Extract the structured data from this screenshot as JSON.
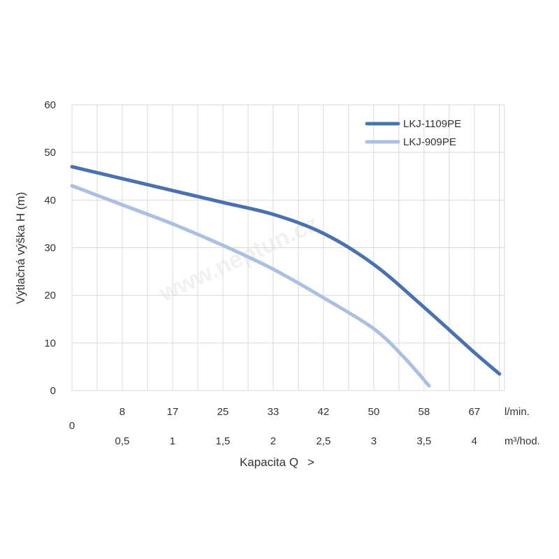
{
  "chart_data": {
    "type": "line",
    "xlabel": "Kapacita Q",
    "xlabel_arrow": ">",
    "ylabel": "Výtlačná výška H (m)",
    "ylim": [
      0,
      60
    ],
    "yticks": [
      0,
      10,
      20,
      30,
      40,
      50,
      60
    ],
    "xlim": [
      0,
      4.3
    ],
    "grid": true,
    "legend_position": "top-right",
    "x_axis_primary": {
      "unit": "l/min.",
      "ticks": [
        {
          "x": 0.5,
          "label": "8"
        },
        {
          "x": 1,
          "label": "17"
        },
        {
          "x": 1.5,
          "label": "25"
        },
        {
          "x": 2,
          "label": "33"
        },
        {
          "x": 2.5,
          "label": "42"
        },
        {
          "x": 3,
          "label": "50"
        },
        {
          "x": 3.5,
          "label": "58"
        },
        {
          "x": 4,
          "label": "67"
        }
      ]
    },
    "x_axis_secondary": {
      "unit": "m³/hod.",
      "ticks": [
        {
          "x": 0,
          "label": "0"
        },
        {
          "x": 0.5,
          "label": "0,5"
        },
        {
          "x": 1,
          "label": "1"
        },
        {
          "x": 1.5,
          "label": "1,5"
        },
        {
          "x": 2,
          "label": "2"
        },
        {
          "x": 2.5,
          "label": "2,5"
        },
        {
          "x": 3,
          "label": "3"
        },
        {
          "x": 3.5,
          "label": "3,5"
        },
        {
          "x": 4,
          "label": "4"
        }
      ]
    },
    "series": [
      {
        "name": "LKJ-1109PE",
        "color": "#4a72b0",
        "x": [
          0,
          0.5,
          1,
          1.5,
          2,
          2.5,
          3,
          3.5,
          4,
          4.25
        ],
        "y": [
          47,
          44.5,
          42,
          39.5,
          37,
          33,
          26.5,
          17.5,
          8,
          3.5
        ]
      },
      {
        "name": "LKJ-909PE",
        "color": "#abc0e0",
        "x": [
          0,
          0.5,
          1,
          1.5,
          2,
          2.5,
          3,
          3.3,
          3.55
        ],
        "y": [
          43,
          39,
          35,
          30.5,
          25.5,
          19.5,
          13,
          7,
          1
        ]
      }
    ]
  },
  "watermark": "www.neptun.cz"
}
